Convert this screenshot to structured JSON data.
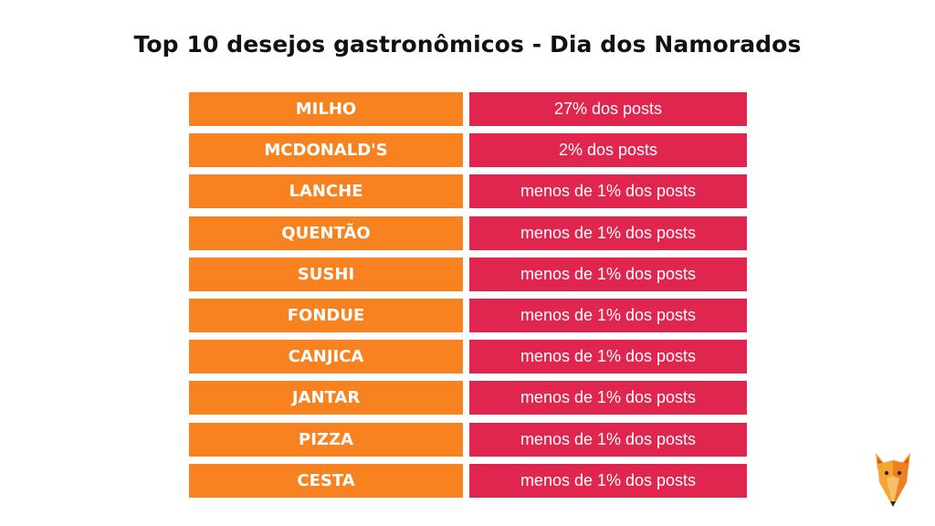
{
  "title": "Top 10 desejos gastronômicos - Dia dos Namorados",
  "rows": [
    {
      "item": "MILHO",
      "value": "27% dos posts"
    },
    {
      "item": "MCDONALD'S",
      "value": "2% dos posts"
    },
    {
      "item": "LANCHE",
      "value": "menos de 1% dos posts"
    },
    {
      "item": "QUENTÃO",
      "value": "menos de 1% dos posts"
    },
    {
      "item": "SUSHI",
      "value": "menos de 1% dos posts"
    },
    {
      "item": "FONDUE",
      "value": "menos de 1% dos posts"
    },
    {
      "item": "CANJICA",
      "value": "menos de 1% dos posts"
    },
    {
      "item": "JANTAR",
      "value": "menos de 1% dos posts"
    },
    {
      "item": "PIZZA",
      "value": "menos de 1% dos posts"
    },
    {
      "item": "CESTA",
      "value": "menos de 1% dos posts"
    }
  ],
  "colors": {
    "item_bg": "#f7821f",
    "value_bg": "#e0254f"
  },
  "logo": {
    "icon": "fox-head-icon"
  }
}
